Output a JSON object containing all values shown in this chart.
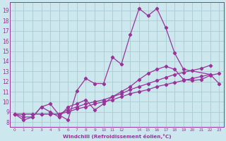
{
  "xlabel": "Windchill (Refroidissement éolien,°C)",
  "ylabel": "",
  "background_color": "#cce8ee",
  "grid_color": "#aacccc",
  "line_color": "#993399",
  "marker": "D",
  "markersize": 2.2,
  "linewidth": 0.9,
  "xlim": [
    -0.5,
    23.5
  ],
  "ylim": [
    7.5,
    19.8
  ],
  "xtick_labels": [
    "0",
    "1",
    "2",
    "3",
    "4",
    "5",
    "6",
    "7",
    "8",
    "9",
    "10",
    "11",
    "12",
    "14",
    "15",
    "16",
    "17",
    "18",
    "19",
    "20",
    "21",
    "22",
    "23"
  ],
  "yticks": [
    8,
    9,
    10,
    11,
    12,
    13,
    14,
    15,
    16,
    17,
    18,
    19
  ],
  "series": [
    [
      8.8,
      8.2,
      8.5,
      9.5,
      9.8,
      8.7,
      8.2,
      11.1,
      12.3,
      11.8,
      11.8,
      14.4,
      13.7,
      16.6,
      19.2,
      18.5,
      19.2,
      17.3,
      14.8,
      13.2,
      null,
      null,
      12.7,
      11.8
    ],
    [
      8.8,
      8.5,
      8.5,
      9.5,
      9.0,
      8.5,
      9.5,
      9.8,
      10.2,
      9.2,
      9.8,
      10.5,
      11.0,
      11.5,
      12.2,
      12.8,
      13.2,
      13.5,
      13.2,
      12.2,
      12.1,
      12.2,
      12.6,
      12.8
    ],
    [
      8.8,
      8.8,
      8.8,
      8.8,
      8.8,
      8.8,
      9.2,
      9.5,
      9.8,
      10.0,
      10.2,
      10.5,
      10.8,
      11.2,
      11.5,
      11.8,
      12.1,
      12.4,
      12.7,
      12.9,
      13.1,
      13.3,
      13.6,
      null
    ],
    [
      8.8,
      8.8,
      8.8,
      8.8,
      8.8,
      8.8,
      9.0,
      9.3,
      9.5,
      9.8,
      10.0,
      10.2,
      10.5,
      10.8,
      11.0,
      11.2,
      11.5,
      11.7,
      11.9,
      12.1,
      12.3,
      12.5,
      12.7,
      null
    ]
  ]
}
